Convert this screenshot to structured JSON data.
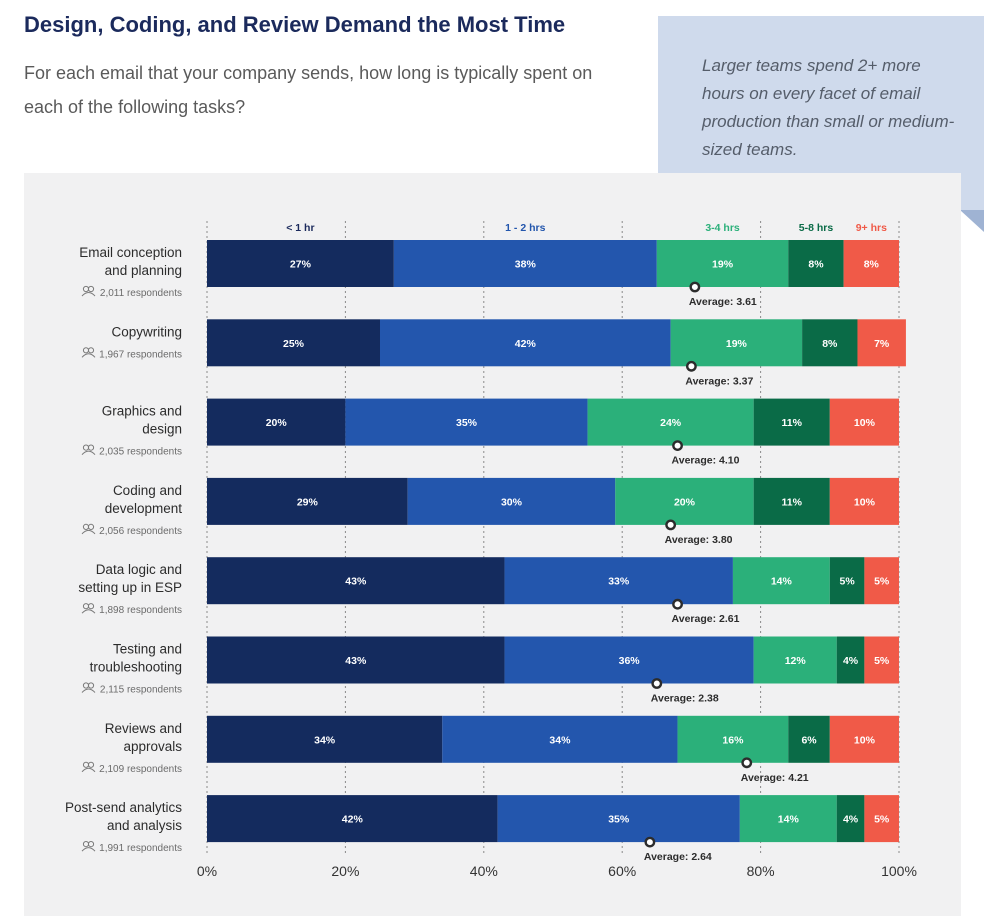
{
  "header": {
    "title": "Design, Coding, and Review Demand the Most Time",
    "subtitle": "For each email that your company sends, how long is typically spent on each of the following tasks?"
  },
  "callout": {
    "text": "Larger teams spend 2+ more hours on every facet of email production than small or medium-sized teams."
  },
  "chart_data": {
    "type": "bar",
    "orientation": "horizontal-stacked-100",
    "xlim": [
      0,
      100
    ],
    "x_ticks": [
      "0%",
      "20%",
      "40%",
      "60%",
      "80%",
      "100%"
    ],
    "grid": "vertical dashed",
    "series": [
      {
        "name": "< 1 hr",
        "color": "#142b5e"
      },
      {
        "name": "1 - 2 hrs",
        "color": "#2356ad"
      },
      {
        "name": "3-4 hrs",
        "color": "#2bb07a"
      },
      {
        "name": "5-8 hrs",
        "color": "#0a6b47"
      },
      {
        "name": "9+ hrs",
        "color": "#f05a48"
      }
    ],
    "series_label_colors": [
      "#1b2a5c",
      "#2356ad",
      "#2bb07a",
      "#0a6b47",
      "#f05a48"
    ],
    "categories": [
      {
        "lines": [
          "Email conception",
          "and planning"
        ],
        "respondents": "2,011 respondents",
        "values": [
          27,
          38,
          19,
          8,
          8
        ],
        "average": "Average: 3.61"
      },
      {
        "lines": [
          "Copywriting"
        ],
        "respondents": "1,967 respondents",
        "values": [
          25,
          42,
          19,
          8,
          7
        ],
        "average": "Average: 3.37"
      },
      {
        "lines": [
          "Graphics and",
          "design"
        ],
        "respondents": "2,035 respondents",
        "values": [
          20,
          35,
          24,
          11,
          10
        ],
        "average": "Average: 4.10"
      },
      {
        "lines": [
          "Coding and",
          "development"
        ],
        "respondents": "2,056 respondents",
        "values": [
          29,
          30,
          20,
          11,
          10
        ],
        "average": "Average: 3.80"
      },
      {
        "lines": [
          "Data logic and",
          "setting up in ESP"
        ],
        "respondents": "1,898 respondents",
        "values": [
          43,
          33,
          14,
          5,
          5
        ],
        "average": "Average: 2.61"
      },
      {
        "lines": [
          "Testing and",
          "troubleshooting"
        ],
        "respondents": "2,115 respondents",
        "values": [
          43,
          36,
          12,
          4,
          5
        ],
        "average": "Average: 2.38"
      },
      {
        "lines": [
          "Reviews and",
          "approvals"
        ],
        "respondents": "2,109 respondents",
        "values": [
          34,
          34,
          16,
          6,
          10
        ],
        "average": "Average: 4.21"
      },
      {
        "lines": [
          "Post-send analytics",
          "and analysis"
        ],
        "respondents": "1,991 respondents",
        "values": [
          42,
          35,
          14,
          4,
          5
        ],
        "average": "Average: 2.64"
      }
    ],
    "average_marker_pct": [
      70.5,
      70,
      68,
      67,
      68,
      65,
      78,
      64
    ]
  }
}
